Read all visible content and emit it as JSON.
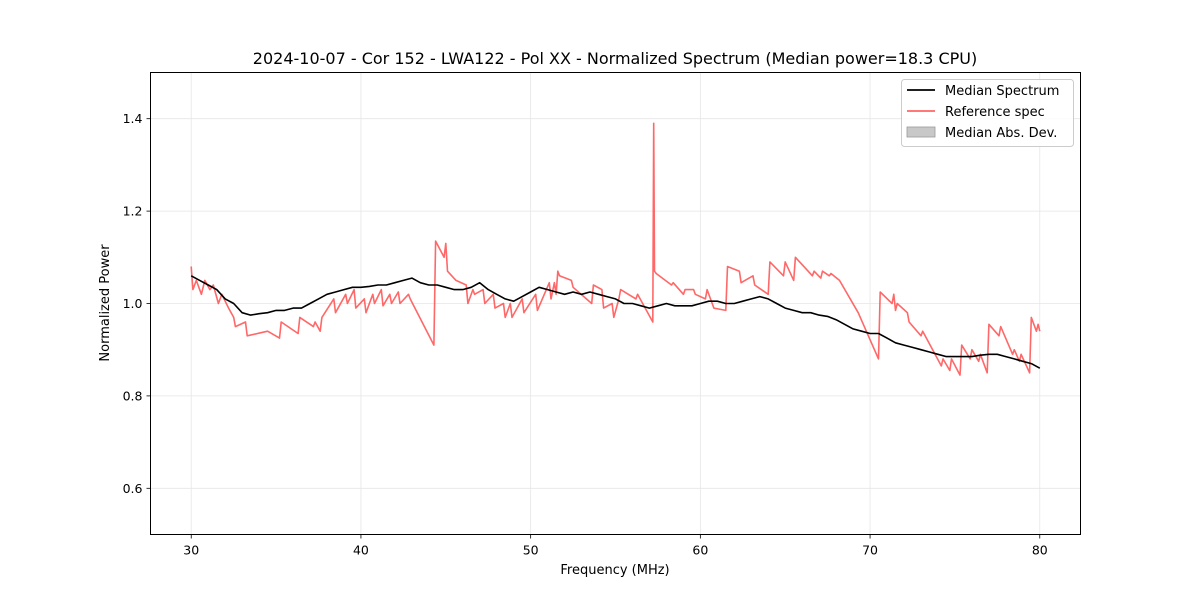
{
  "chart_data": {
    "type": "line",
    "title": "2024-10-07 - Cor 152 - LWA122 - Pol XX - Normalized Spectrum (Median power=18.3 CPU)",
    "xlabel": "Frequency (MHz)",
    "ylabel": "Normalized Power",
    "xlim": [
      27.6,
      82.4
    ],
    "ylim": [
      0.5,
      1.5
    ],
    "xticks": [
      30,
      40,
      50,
      60,
      70,
      80
    ],
    "yticks": [
      0.6,
      0.8,
      1.0,
      1.2,
      1.4
    ],
    "grid": true,
    "legend_position": "top-right",
    "legend": [
      "Median Spectrum",
      "Reference spec",
      "Median Abs. Dev."
    ],
    "series": [
      {
        "name": "Median Spectrum",
        "color": "#000000",
        "x": [
          30,
          30.5,
          31,
          31.5,
          32,
          32.5,
          33,
          33.5,
          34,
          34.5,
          35,
          35.5,
          36,
          36.5,
          37,
          37.5,
          38,
          38.5,
          39,
          39.5,
          40,
          40.5,
          41,
          41.5,
          42,
          42.5,
          43,
          43.5,
          44,
          44.5,
          45,
          45.5,
          46,
          46.5,
          47,
          47.5,
          48,
          48.5,
          49,
          49.5,
          50,
          50.5,
          51,
          51.5,
          52,
          52.5,
          53,
          53.5,
          54,
          54.5,
          55,
          55.5,
          56,
          56.5,
          57,
          57.5,
          58,
          58.5,
          59,
          59.5,
          60,
          60.5,
          61,
          61.5,
          62,
          62.5,
          63,
          63.5,
          64,
          64.5,
          65,
          65.5,
          66,
          66.5,
          67,
          67.5,
          68,
          68.5,
          69,
          69.5,
          70,
          70.5,
          71,
          71.5,
          72,
          72.5,
          73,
          73.5,
          74,
          74.5,
          75,
          75.5,
          76,
          76.5,
          77,
          77.5,
          78,
          78.5,
          79,
          79.5,
          80
        ],
        "values": [
          1.06,
          1.05,
          1.04,
          1.03,
          1.01,
          1.0,
          0.98,
          0.975,
          0.978,
          0.98,
          0.985,
          0.985,
          0.99,
          0.99,
          1.0,
          1.01,
          1.02,
          1.025,
          1.03,
          1.035,
          1.035,
          1.037,
          1.04,
          1.04,
          1.045,
          1.05,
          1.055,
          1.045,
          1.04,
          1.04,
          1.035,
          1.03,
          1.03,
          1.035,
          1.045,
          1.03,
          1.02,
          1.01,
          1.005,
          1.015,
          1.025,
          1.035,
          1.03,
          1.025,
          1.02,
          1.025,
          1.02,
          1.025,
          1.02,
          1.015,
          1.01,
          1.0,
          1.0,
          0.995,
          0.99,
          0.995,
          1.0,
          0.995,
          0.995,
          0.995,
          1.0,
          1.005,
          1.005,
          1.0,
          1.0,
          1.005,
          1.01,
          1.015,
          1.01,
          1.0,
          0.99,
          0.985,
          0.98,
          0.98,
          0.975,
          0.972,
          0.965,
          0.955,
          0.945,
          0.94,
          0.935,
          0.935,
          0.925,
          0.915,
          0.91,
          0.905,
          0.9,
          0.895,
          0.89,
          0.885,
          0.885,
          0.885,
          0.885,
          0.888,
          0.89,
          0.89,
          0.885,
          0.88,
          0.875,
          0.87,
          0.86
        ]
      },
      {
        "name": "Reference spec",
        "color": "#ff4d4d",
        "x": [
          30,
          30.1,
          30.3,
          30.6,
          30.8,
          31.1,
          31.3,
          31.6,
          31.8,
          32.2,
          32.5,
          32.6,
          33.2,
          33.3,
          34.5,
          35.2,
          35.3,
          36.3,
          36.4,
          37.2,
          37.3,
          37.6,
          37.7,
          38.4,
          38.5,
          39.1,
          39.2,
          39.6,
          39.7,
          40.2,
          40.3,
          40.7,
          40.8,
          41.2,
          41.3,
          41.7,
          41.8,
          42.2,
          42.3,
          42.8,
          42.9,
          44.3,
          44.4,
          44.9,
          45.0,
          45.1,
          45.6,
          46.2,
          46.3,
          46.6,
          46.7,
          47.2,
          47.3,
          47.8,
          47.9,
          48.4,
          48.5,
          48.8,
          48.9,
          49.5,
          49.6,
          50.3,
          50.4,
          51.1,
          51.2,
          51.4,
          51.5,
          51.6,
          51.7,
          52.4,
          52.5,
          53.6,
          53.7,
          54.2,
          54.3,
          54.8,
          54.9,
          55.2,
          55.3,
          56.2,
          56.3,
          57.2,
          57.25,
          57.3,
          57.4,
          58.3,
          58.4,
          59.0,
          59.1,
          59.6,
          59.7,
          60.3,
          60.4,
          60.7,
          60.8,
          61.5,
          61.6,
          62.3,
          62.4,
          63.1,
          63.2,
          64.0,
          64.1,
          64.9,
          65.0,
          65.5,
          65.6,
          66.6,
          66.7,
          67.1,
          67.2,
          67.6,
          67.7,
          68.2,
          69.3,
          70.5,
          70.6,
          71.3,
          71.4,
          71.5,
          71.6,
          72.2,
          72.3,
          73.0,
          73.1,
          74.2,
          74.3,
          74.7,
          74.8,
          75.3,
          75.4,
          75.9,
          76.0,
          76.4,
          76.5,
          76.9,
          77.0,
          77.6,
          77.7,
          78.4,
          78.5,
          78.8,
          78.9,
          79.4,
          79.5,
          79.8,
          79.9,
          80
        ],
        "values": [
          1.08,
          1.03,
          1.05,
          1.02,
          1.05,
          1.03,
          1.04,
          1.0,
          1.02,
          0.99,
          0.97,
          0.95,
          0.96,
          0.93,
          0.94,
          0.925,
          0.96,
          0.935,
          0.97,
          0.95,
          0.96,
          0.94,
          0.97,
          1.01,
          0.98,
          1.02,
          1.0,
          1.03,
          0.99,
          1.01,
          0.98,
          1.02,
          1.0,
          1.03,
          0.995,
          1.02,
          1.0,
          1.025,
          1.0,
          1.02,
          1.01,
          0.91,
          1.135,
          1.1,
          1.13,
          1.07,
          1.05,
          1.04,
          1.0,
          1.03,
          1.02,
          1.03,
          1.0,
          1.02,
          0.99,
          1.0,
          0.97,
          1.0,
          0.97,
          1.01,
          0.98,
          1.02,
          0.985,
          1.045,
          1.01,
          1.045,
          1.02,
          1.07,
          1.06,
          1.05,
          1.035,
          1.0,
          1.04,
          1.03,
          0.99,
          1.0,
          0.97,
          1.01,
          1.03,
          1.01,
          1.02,
          0.96,
          1.39,
          1.07,
          1.065,
          1.04,
          1.045,
          1.02,
          1.03,
          1.03,
          1.02,
          1.01,
          1.03,
          1.0,
          0.99,
          0.985,
          1.08,
          1.07,
          1.045,
          1.06,
          1.04,
          1.02,
          1.09,
          1.06,
          1.09,
          1.05,
          1.1,
          1.06,
          1.07,
          1.055,
          1.07,
          1.06,
          1.065,
          1.05,
          0.98,
          0.88,
          1.025,
          1.0,
          1.02,
          0.985,
          1.0,
          0.98,
          0.96,
          0.93,
          0.94,
          0.865,
          0.88,
          0.855,
          0.88,
          0.845,
          0.91,
          0.88,
          0.9,
          0.875,
          0.89,
          0.85,
          0.955,
          0.93,
          0.95,
          0.89,
          0.9,
          0.875,
          0.89,
          0.85,
          0.97,
          0.94,
          0.955,
          0.94
        ]
      }
    ]
  }
}
